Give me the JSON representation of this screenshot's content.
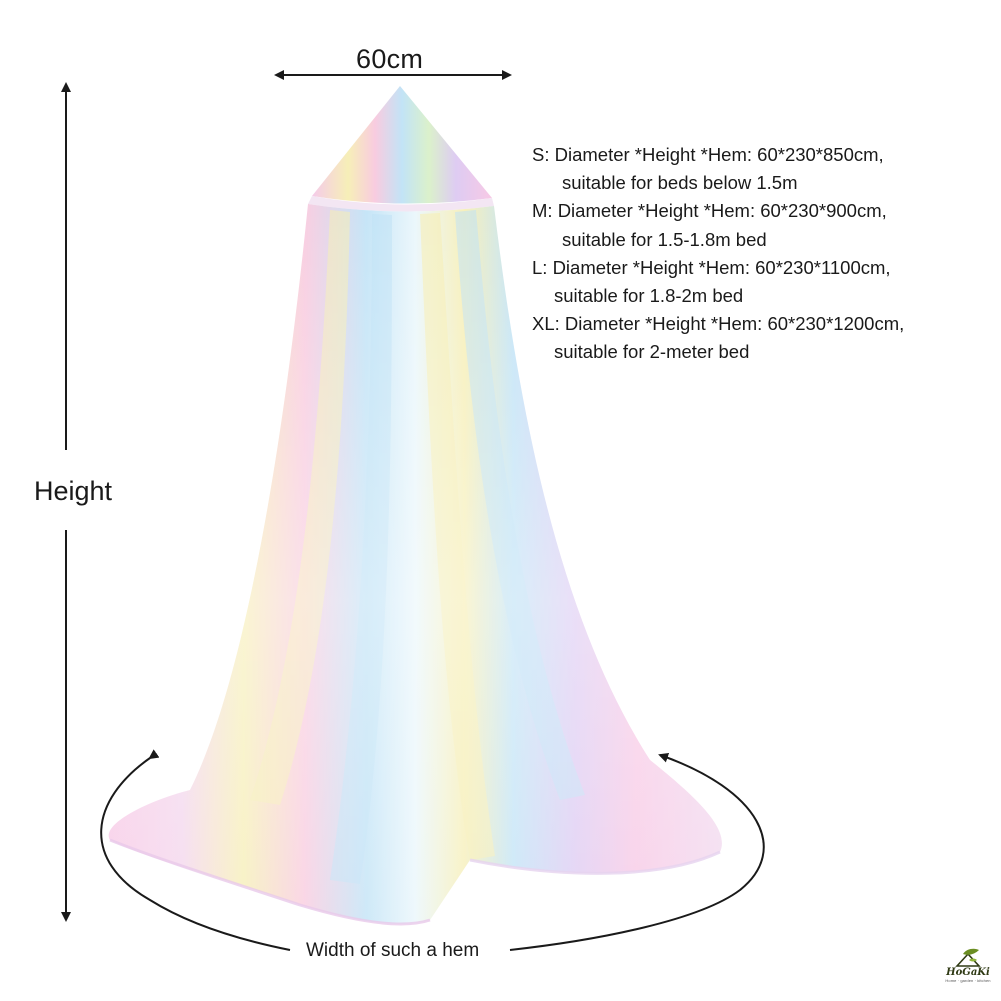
{
  "dimensions": {
    "width_label": "60cm",
    "height_label": "Height",
    "hem_label": "Width of such a hem"
  },
  "sizes": [
    {
      "line": "S: Diameter *Height *Hem: 60*230*850cm,",
      "note": "suitable for beds below 1.5m"
    },
    {
      "line": "M: Diameter *Height *Hem: 60*230*900cm,",
      "note": "suitable for 1.5-1.8m bed"
    },
    {
      "line": "L: Diameter *Height *Hem: 60*230*1100cm,",
      "note": "suitable for 1.8-2m bed"
    },
    {
      "line": "XL: Diameter *Height *Hem: 60*230*1200cm,",
      "note": "suitable for 2-meter bed"
    }
  ],
  "logo": {
    "name": "HoGaKi",
    "tagline": "Home · garden · kitchen"
  },
  "colors": {
    "pink": "#f7c6e4",
    "lilac": "#dcc9f2",
    "blue": "#bfe2f6",
    "yellow": "#f6eeb4",
    "green": "#d9f0c8",
    "arrow": "#1a1a1a"
  }
}
